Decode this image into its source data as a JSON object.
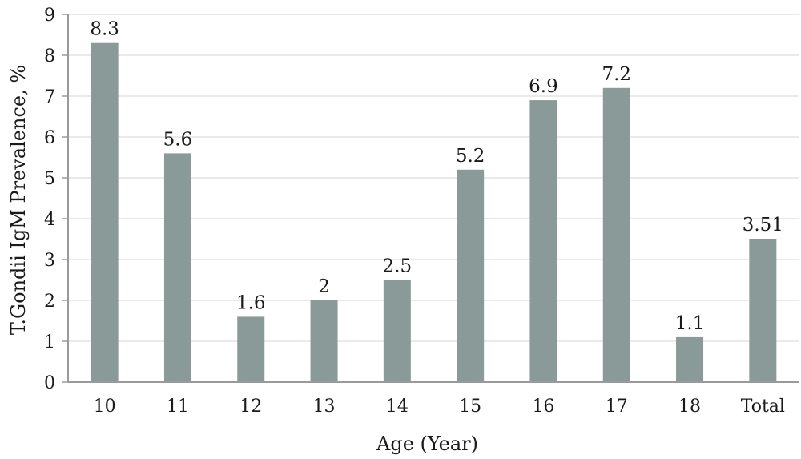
{
  "chart_data": {
    "type": "bar",
    "categories": [
      "10",
      "11",
      "12",
      "13",
      "14",
      "15",
      "16",
      "17",
      "18",
      "Total"
    ],
    "values": [
      8.3,
      5.6,
      1.6,
      2,
      2.5,
      5.2,
      6.9,
      7.2,
      1.1,
      3.51
    ],
    "value_labels": [
      "8.3",
      "5.6",
      "1.6",
      "2",
      "2.5",
      "5.2",
      "6.9",
      "7.2",
      "1.1",
      "3.51"
    ],
    "y_ticks": [
      0,
      1,
      2,
      3,
      4,
      5,
      6,
      7,
      8,
      9
    ],
    "ylim": [
      0,
      9
    ],
    "xlabel": "Age (Year)",
    "ylabel": "T.Gondii IgM Prevalence, %",
    "grid": true,
    "bar_color": "#8a9a98",
    "grid_color": "#e4e4e4",
    "axis_color": "#9a9a9a"
  }
}
